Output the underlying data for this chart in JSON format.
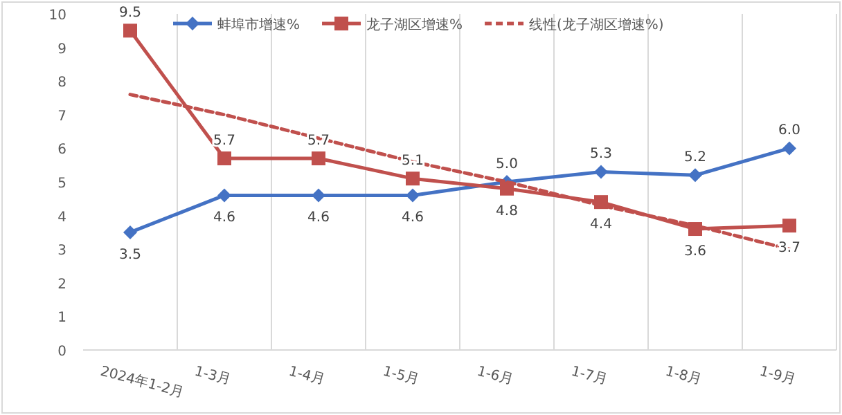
{
  "chart_data": {
    "type": "line",
    "categories": [
      "2024年1-2月",
      "1-3月",
      "1-4月",
      "1-5月",
      "1-6月",
      "1-7月",
      "1-8月",
      "1-9月"
    ],
    "series": [
      {
        "name": "蚌埠市增速%",
        "color": "#4472c4",
        "marker": "diamond",
        "values": [
          3.5,
          4.6,
          4.6,
          4.6,
          5.0,
          5.3,
          5.2,
          6.0
        ],
        "value_labels": [
          "3.5",
          "4.6",
          "4.6",
          "4.6",
          "5.0",
          "5.3",
          "5.2",
          "6.0"
        ]
      },
      {
        "name": "龙子湖区增速%",
        "color": "#c0504d",
        "marker": "square",
        "values": [
          9.5,
          5.7,
          5.7,
          5.1,
          4.8,
          4.4,
          3.6,
          3.7
        ],
        "value_labels": [
          "9.5",
          "5.7",
          "5.7",
          "5.1",
          "4.8",
          "4.4",
          "3.6",
          "3.7"
        ]
      },
      {
        "name": "线性(龙子湖区增速%)",
        "color": "#c0504d",
        "marker": "none",
        "line_style": "dashed",
        "values": [
          7.6,
          7.0,
          6.3,
          5.6,
          5.0,
          4.3,
          3.7,
          3.0
        ]
      }
    ],
    "ylim": [
      0,
      10
    ],
    "yticks": [
      0,
      1,
      2,
      3,
      4,
      5,
      6,
      7,
      8,
      9,
      10
    ],
    "grid": "x",
    "legend": "top"
  }
}
